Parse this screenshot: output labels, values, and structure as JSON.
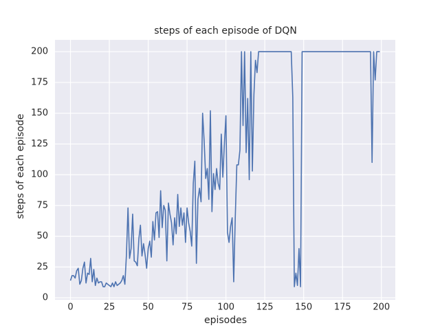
{
  "chart_data": {
    "type": "line",
    "title": "steps of each episode of DQN",
    "x_label": "episodes",
    "y_label": "steps of each episode",
    "x": [
      0,
      1,
      2,
      3,
      4,
      5,
      6,
      7,
      8,
      9,
      10,
      11,
      12,
      13,
      14,
      15,
      16,
      17,
      18,
      19,
      20,
      21,
      22,
      23,
      24,
      25,
      26,
      27,
      28,
      29,
      30,
      31,
      32,
      33,
      34,
      35,
      36,
      37,
      38,
      39,
      40,
      41,
      42,
      43,
      44,
      45,
      46,
      47,
      48,
      49,
      50,
      51,
      52,
      53,
      54,
      55,
      56,
      57,
      58,
      59,
      60,
      61,
      62,
      63,
      64,
      65,
      66,
      67,
      68,
      69,
      70,
      71,
      72,
      73,
      74,
      75,
      76,
      77,
      78,
      79,
      80,
      81,
      82,
      83,
      84,
      85,
      86,
      87,
      88,
      89,
      90,
      91,
      92,
      93,
      94,
      95,
      96,
      97,
      98,
      99,
      100,
      101,
      102,
      103,
      104,
      105,
      106,
      107,
      108,
      109,
      110,
      111,
      112,
      113,
      114,
      115,
      116,
      117,
      118,
      119,
      120,
      121,
      122,
      123,
      124,
      125,
      126,
      127,
      128,
      129,
      130,
      131,
      132,
      133,
      134,
      135,
      136,
      137,
      138,
      139,
      140,
      141,
      142,
      143,
      144,
      145,
      146,
      147,
      148,
      149,
      150,
      151,
      152,
      153,
      154,
      155,
      156,
      157,
      158,
      159,
      160,
      161,
      162,
      163,
      164,
      165,
      166,
      167,
      168,
      169,
      170,
      171,
      172,
      173,
      174,
      175,
      176,
      177,
      178,
      179,
      180,
      181,
      182,
      183,
      184,
      185,
      186,
      187,
      188,
      189,
      190,
      191,
      192,
      193,
      194,
      195,
      196,
      197,
      198,
      199
    ],
    "series": [
      {
        "color": "#4c72b0",
        "values": [
          14,
          18,
          18,
          16,
          22,
          24,
          11,
          14,
          24,
          29,
          12,
          20,
          19,
          32,
          13,
          23,
          10,
          16,
          12,
          13,
          13,
          9,
          9,
          12,
          11,
          10,
          9,
          12,
          9,
          13,
          10,
          11,
          12,
          14,
          18,
          11,
          35,
          73,
          32,
          40,
          68,
          30,
          29,
          26,
          48,
          59,
          34,
          44,
          35,
          24,
          40,
          46,
          33,
          62,
          47,
          69,
          70,
          49,
          87,
          57,
          75,
          71,
          30,
          77,
          68,
          61,
          43,
          65,
          52,
          84,
          58,
          73,
          59,
          69,
          45,
          73,
          61,
          54,
          42,
          93,
          111,
          28,
          80,
          89,
          78,
          150,
          127,
          97,
          105,
          80,
          152,
          70,
          101,
          88,
          105,
          93,
          88,
          133,
          98,
          125,
          148,
          53,
          45,
          58,
          65,
          13,
          65,
          108,
          108,
          120,
          200,
          140,
          200,
          118,
          162,
          96,
          200,
          103,
          165,
          193,
          183,
          200,
          200,
          200,
          200,
          200,
          200,
          200,
          200,
          200,
          200,
          200,
          200,
          200,
          200,
          200,
          200,
          200,
          200,
          200,
          200,
          200,
          200,
          163,
          9,
          20,
          10,
          40,
          9,
          200,
          200,
          200,
          200,
          200,
          200,
          200,
          200,
          200,
          200,
          200,
          200,
          200,
          200,
          200,
          200,
          200,
          200,
          200,
          200,
          200,
          200,
          200,
          200,
          200,
          200,
          200,
          200,
          200,
          200,
          200,
          200,
          200,
          200,
          200,
          200,
          200,
          200,
          200,
          200,
          200,
          200,
          200,
          200,
          200,
          110,
          200,
          177,
          200,
          200,
          200
        ]
      }
    ],
    "xlim": [
      -9.95,
      208.95
    ],
    "ylim": [
      -1.6,
      209.6
    ],
    "xticks": [
      0,
      25,
      50,
      75,
      100,
      125,
      150,
      175,
      200
    ],
    "yticks": [
      0,
      25,
      50,
      75,
      100,
      125,
      150,
      175,
      200
    ],
    "grid": true,
    "background": "#eaeaf2"
  }
}
